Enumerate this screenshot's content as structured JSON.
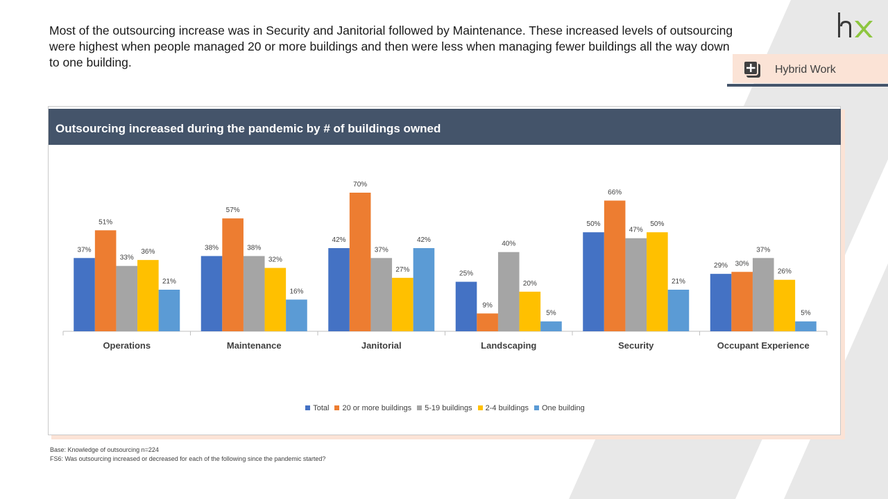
{
  "intro_text": "Most of the outsourcing increase was in Security and Janitorial followed by Maintenance. These increased levels of outsourcing were highest when people managed 20 or more buildings and then were less when managing fewer buildings all the way down to one building.",
  "logo": {
    "text": "hx",
    "colors": [
      "#3a3a3a",
      "#8dc63f"
    ]
  },
  "tag": {
    "label": "Hybrid Work",
    "icon": "plus-square-icon"
  },
  "footnotes": {
    "base": "Base: Knowledge of outsourcing n=224",
    "question": "FS6: Was outsourcing increased or decreased for each of the following since the pandemic started?"
  },
  "colors": {
    "title_bar": "#44546a",
    "accent_peach": "#fbe3d6"
  },
  "chart_data": {
    "type": "bar",
    "title": "Outsourcing  increased during the pandemic by # of buildings owned",
    "categories": [
      "Operations",
      "Maintenance",
      "Janitorial",
      "Landscaping",
      "Security",
      "Occupant Experience"
    ],
    "series": [
      {
        "name": "Total",
        "color": "#4472c4",
        "values": [
          37,
          38,
          42,
          25,
          50,
          29
        ]
      },
      {
        "name": "20 or more buildings",
        "color": "#ed7d31",
        "values": [
          51,
          57,
          70,
          9,
          66,
          30
        ]
      },
      {
        "name": "5-19 buildings",
        "color": "#a5a5a5",
        "values": [
          33,
          38,
          37,
          40,
          47,
          37
        ]
      },
      {
        "name": "2-4 buildings",
        "color": "#ffc000",
        "values": [
          36,
          32,
          27,
          20,
          50,
          26
        ]
      },
      {
        "name": "One building",
        "color": "#5b9bd5",
        "values": [
          21,
          16,
          42,
          5,
          21,
          5
        ]
      }
    ],
    "value_suffix": "%",
    "ylim": [
      0,
      80
    ],
    "legend_position": "bottom",
    "grid": false
  }
}
